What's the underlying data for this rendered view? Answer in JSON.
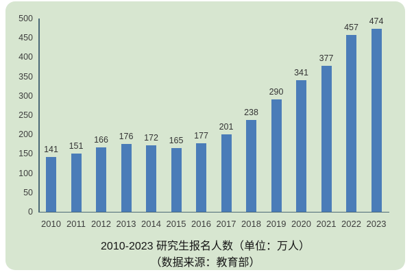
{
  "colors": {
    "page_bg": "#ffffff",
    "panel_bg": "#d7e6d0",
    "bar": "#4a7cb8",
    "axis": "#4a6876",
    "tick_text": "#3d3d3d",
    "label_text": "#333333",
    "title_text": "#141414"
  },
  "chart_data": {
    "type": "bar",
    "categories": [
      "2010",
      "2011",
      "2012",
      "2013",
      "2014",
      "2015",
      "2016",
      "2017",
      "2018",
      "2019",
      "2020",
      "2021",
      "2022",
      "2023"
    ],
    "values": [
      141,
      151,
      166,
      176,
      172,
      165,
      177,
      201,
      238,
      290,
      341,
      377,
      457,
      474
    ],
    "title": "2010-2023 研究生报名人数（单位：万人）",
    "subtitle": "（数据来源：教育部）",
    "xlabel": "",
    "ylabel": "",
    "ylim": [
      0,
      500
    ],
    "ytick_step": 50,
    "grid": false,
    "legend": "none",
    "data_labels": true
  }
}
